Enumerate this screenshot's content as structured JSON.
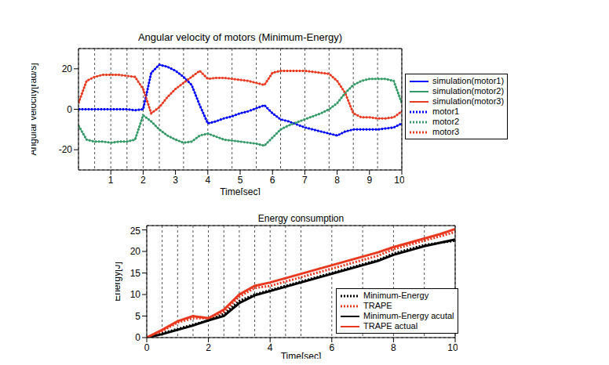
{
  "chart_data": [
    {
      "type": "line",
      "title": "Angular velocity of motors (Minimum-Energy)",
      "x_label": "Time[sec]",
      "y_label": "Angular velocity[rad/s]",
      "xlim": [
        0,
        10
      ],
      "xticks": [
        1,
        2,
        3,
        4,
        5,
        6,
        7,
        8,
        9,
        10
      ],
      "ylim": [
        -30,
        30
      ],
      "yticks": [
        -20,
        0,
        20
      ],
      "grid": true,
      "legend": "outside right",
      "x": [
        0,
        0.25,
        0.5,
        0.75,
        1,
        1.25,
        1.5,
        1.75,
        2,
        2.25,
        2.5,
        2.75,
        3,
        3.25,
        3.5,
        3.75,
        4,
        4.25,
        4.5,
        4.75,
        5,
        5.25,
        5.5,
        5.75,
        6,
        6.25,
        6.5,
        6.75,
        7,
        7.25,
        7.5,
        7.75,
        8,
        8.25,
        8.5,
        8.75,
        9,
        9.25,
        9.5,
        9.75,
        10
      ],
      "series": [
        {
          "name": "simulation(motor1)",
          "color": "#0000ff",
          "line_style": "solid",
          "values": [
            0,
            0,
            0,
            0,
            0,
            0,
            0,
            -0.5,
            0,
            18,
            22,
            21,
            19,
            16,
            12,
            2,
            -7,
            -6,
            -4.5,
            -3.5,
            -2,
            -1,
            0.5,
            2,
            -2,
            -5,
            -6,
            -7.5,
            -9,
            -10,
            -11,
            -12,
            -13,
            -11,
            -10,
            -10,
            -10,
            -10,
            -9.5,
            -9,
            -7
          ]
        },
        {
          "name": "simulation(motor2)",
          "color": "#339966",
          "line_style": "solid",
          "values": [
            -8,
            -15,
            -16,
            -16,
            -16.5,
            -16,
            -16,
            -15,
            -3,
            -6,
            -10,
            -13,
            -15,
            -16.5,
            -16,
            -13,
            -12,
            -13.5,
            -15,
            -15.5,
            -16,
            -16.5,
            -17,
            -18,
            -14,
            -10,
            -8,
            -6.5,
            -5,
            -3.5,
            -2,
            0,
            3,
            8,
            12,
            14,
            15,
            15,
            15,
            14,
            3
          ]
        },
        {
          "name": "simulation(motor3)",
          "color": "#e8381f",
          "line_style": "solid",
          "values": [
            3,
            14,
            16,
            17,
            17,
            17,
            16.5,
            16,
            10,
            -2,
            1,
            6,
            10,
            13,
            16,
            19,
            15,
            15.5,
            15.5,
            15,
            14.5,
            14,
            13,
            12,
            18,
            19,
            19,
            19,
            19,
            18.5,
            18,
            17.5,
            14,
            8,
            -2,
            -4,
            -4,
            -4.5,
            -4.5,
            -4,
            -1
          ]
        },
        {
          "name": "motor1",
          "color": "#0000ff",
          "line_style": "dotted",
          "values": [
            0,
            0,
            0,
            0,
            0,
            0,
            0,
            -0.5,
            0,
            18,
            22,
            21,
            19,
            16,
            12,
            2,
            -7,
            -6,
            -4.5,
            -3.5,
            -2,
            -1,
            0.5,
            2,
            -2,
            -5,
            -6,
            -7.5,
            -9,
            -10,
            -11,
            -12,
            -13,
            -11,
            -10,
            -10,
            -10,
            -10,
            -9.5,
            -9,
            -7
          ]
        },
        {
          "name": "motor2",
          "color": "#339966",
          "line_style": "dotted",
          "values": [
            -8,
            -15,
            -16,
            -16,
            -16.5,
            -16,
            -16,
            -15,
            -3,
            -6,
            -10,
            -13,
            -15,
            -16.5,
            -16,
            -13,
            -12,
            -13.5,
            -15,
            -15.5,
            -16,
            -16.5,
            -17,
            -18,
            -14,
            -10,
            -8,
            -6.5,
            -5,
            -3.5,
            -2,
            0,
            3,
            8,
            12,
            14,
            15,
            15,
            15,
            14,
            3
          ]
        },
        {
          "name": "motor3",
          "color": "#e8381f",
          "line_style": "dotted",
          "values": [
            3,
            14,
            16,
            17,
            17,
            17,
            16.5,
            16,
            10,
            -2,
            1,
            6,
            10,
            13,
            16,
            19,
            15,
            15.5,
            15.5,
            15,
            14.5,
            14,
            13,
            12,
            18,
            19,
            19,
            19,
            19,
            18.5,
            18,
            17.5,
            14,
            8,
            -2,
            -4,
            -4,
            -4.5,
            -4.5,
            -4,
            -1
          ]
        }
      ]
    },
    {
      "type": "line",
      "title": "Energy consumption",
      "x_label": "Time[sec]",
      "y_label": "Energy[J]",
      "xlim": [
        0,
        10
      ],
      "xticks": [
        0,
        2,
        4,
        6,
        8,
        10
      ],
      "ylim": [
        0,
        26
      ],
      "yticks": [
        0,
        5,
        10,
        15,
        20,
        25
      ],
      "grid": true,
      "legend": "lower right",
      "x": [
        0,
        0.5,
        1,
        1.5,
        2,
        2.5,
        3,
        3.5,
        4,
        4.5,
        5,
        5.5,
        6,
        6.5,
        7,
        7.5,
        8,
        8.5,
        9,
        9.5,
        10
      ],
      "series": [
        {
          "name": "Minimum-Energy",
          "color": "#000000",
          "line_style": "dotted",
          "values": [
            0,
            1,
            2,
            3,
            4,
            5.5,
            8.5,
            10,
            11,
            12,
            13,
            14,
            15,
            16,
            17,
            18,
            19.5,
            20.5,
            21.5,
            22,
            22.5
          ]
        },
        {
          "name": "TRAPE",
          "color": "#e8381f",
          "line_style": "dotted",
          "values": [
            0,
            1.5,
            3.5,
            4.5,
            4.5,
            6,
            9.5,
            11.5,
            12,
            13,
            14,
            15,
            16,
            17,
            18,
            19,
            20.5,
            21.5,
            22.5,
            23.5,
            24.5
          ]
        },
        {
          "name": "Minimum-Energy acutal",
          "color": "#000000",
          "line_style": "solid",
          "values": [
            0,
            0.8,
            1.8,
            2.8,
            4,
            5,
            8,
            9.8,
            10.8,
            11.8,
            12.8,
            13.8,
            14.8,
            15.8,
            16.8,
            17.8,
            19.2,
            20.2,
            21.2,
            22,
            22.8
          ]
        },
        {
          "name": "TRAPE actual",
          "color": "#e8381f",
          "line_style": "solid",
          "values": [
            0,
            1.8,
            3.8,
            5,
            4.5,
            6.5,
            10,
            12,
            12.8,
            13.8,
            14.8,
            15.8,
            16.8,
            17.8,
            18.8,
            19.8,
            21,
            22,
            23,
            24,
            25.2
          ]
        }
      ]
    }
  ]
}
